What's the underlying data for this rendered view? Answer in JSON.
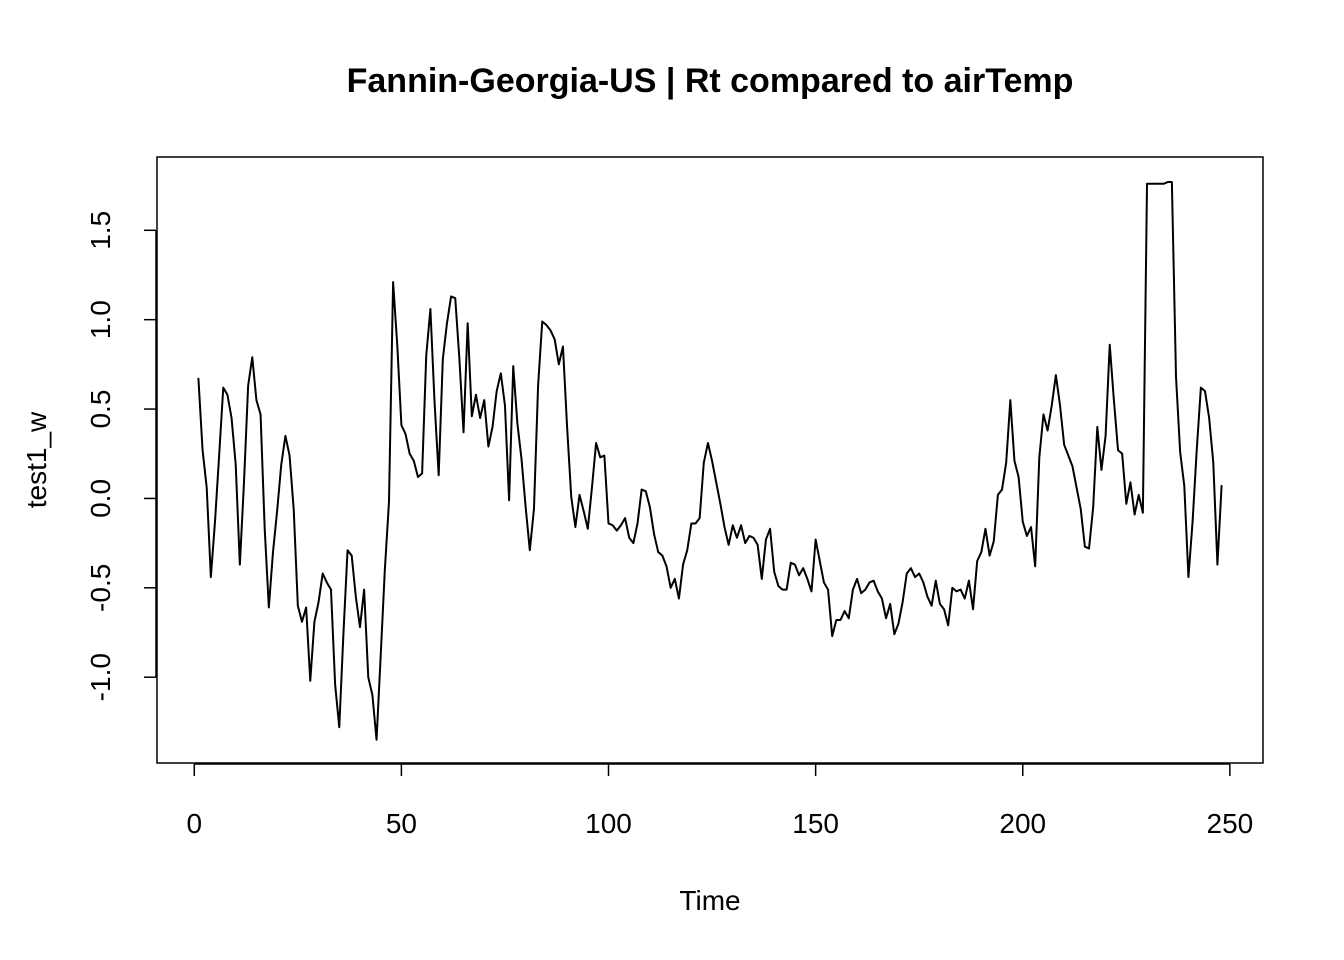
{
  "chart_data": {
    "type": "line",
    "title": "Fannin-Georgia-US | Rt compared to airTemp",
    "xlabel": "Time",
    "ylabel": "test1_w",
    "xlim": [
      -9,
      258
    ],
    "ylim": [
      -1.48,
      1.91
    ],
    "x_ticks": [
      0,
      50,
      100,
      150,
      200,
      250
    ],
    "x_tick_labels": [
      "0",
      "50",
      "100",
      "150",
      "200",
      "250"
    ],
    "y_ticks": [
      -1.0,
      -0.5,
      0.0,
      0.5,
      1.0,
      1.5
    ],
    "y_tick_labels": [
      "-1.0",
      "-0.5",
      "0.0",
      "0.5",
      "1.0",
      "1.5"
    ],
    "grid": false,
    "legend": "none",
    "line_color": "#000000",
    "series": [
      {
        "x": [
          1,
          2,
          3,
          4,
          5,
          6,
          7,
          8,
          9,
          10,
          11,
          12,
          13,
          14,
          15,
          16,
          17,
          18,
          19,
          20,
          21,
          22,
          23,
          24,
          25,
          26,
          27,
          28,
          29,
          30,
          31,
          32,
          33,
          34,
          35,
          36,
          37,
          38,
          39,
          40,
          41,
          42,
          43,
          44,
          45,
          46,
          47,
          48,
          49,
          50,
          51,
          52,
          53,
          54,
          55,
          56,
          57,
          58,
          59,
          60,
          61,
          62,
          63,
          64,
          65,
          66,
          67,
          68,
          69,
          70,
          71,
          72,
          73,
          74,
          75,
          76,
          77,
          78,
          79,
          80,
          81,
          82,
          83,
          84,
          85,
          86,
          87,
          88,
          89,
          90,
          91,
          92,
          93,
          94,
          95,
          96,
          97,
          98,
          99,
          100,
          101,
          102,
          103,
          104,
          105,
          106,
          107,
          108,
          109,
          110,
          111,
          112,
          113,
          114,
          115,
          116,
          117,
          118,
          119,
          120,
          121,
          122,
          123,
          124,
          125,
          126,
          127,
          128,
          129,
          130,
          131,
          132,
          133,
          134,
          135,
          136,
          137,
          138,
          139,
          140,
          141,
          142,
          143,
          144,
          145,
          146,
          147,
          148,
          149,
          150,
          151,
          152,
          153,
          154,
          155,
          156,
          157,
          158,
          159,
          160,
          161,
          162,
          163,
          164,
          165,
          166,
          167,
          168,
          169,
          170,
          171,
          172,
          173,
          174,
          175,
          176,
          177,
          178,
          179,
          180,
          181,
          182,
          183,
          184,
          185,
          186,
          187,
          188,
          189,
          190,
          191,
          192,
          193,
          194,
          195,
          196,
          197,
          198,
          199,
          200,
          201,
          202,
          203,
          204,
          205,
          206,
          207,
          208,
          209,
          210,
          211,
          212,
          213,
          214,
          215,
          216,
          217,
          218,
          219,
          220,
          221,
          222,
          223,
          224,
          225,
          226,
          227,
          228,
          229,
          230,
          231,
          232,
          233,
          234,
          235,
          236,
          237,
          238,
          239,
          240,
          241,
          242,
          243,
          244,
          245,
          246,
          247,
          248
        ],
        "values": [
          0.67,
          0.27,
          0.06,
          -0.44,
          -0.13,
          0.24,
          0.62,
          0.58,
          0.45,
          0.19,
          -0.37,
          0.09,
          0.63,
          0.79,
          0.55,
          0.47,
          -0.17,
          -0.61,
          -0.3,
          -0.07,
          0.19,
          0.35,
          0.24,
          -0.06,
          -0.6,
          -0.69,
          -0.61,
          -1.02,
          -0.69,
          -0.58,
          -0.42,
          -0.47,
          -0.51,
          -1.04,
          -1.28,
          -0.76,
          -0.29,
          -0.32,
          -0.55,
          -0.72,
          -0.51,
          -1.0,
          -1.1,
          -1.35,
          -0.88,
          -0.4,
          -0.02,
          1.21,
          0.86,
          0.41,
          0.36,
          0.25,
          0.21,
          0.12,
          0.14,
          0.8,
          1.06,
          0.54,
          0.13,
          0.78,
          0.98,
          1.13,
          1.12,
          0.78,
          0.37,
          0.98,
          0.46,
          0.58,
          0.45,
          0.55,
          0.29,
          0.4,
          0.6,
          0.7,
          0.52,
          -0.01,
          0.74,
          0.42,
          0.22,
          -0.05,
          -0.29,
          -0.06,
          0.63,
          0.99,
          0.97,
          0.94,
          0.89,
          0.75,
          0.85,
          0.4,
          0.01,
          -0.16,
          0.02,
          -0.07,
          -0.17,
          0.06,
          0.31,
          0.23,
          0.24,
          -0.14,
          -0.15,
          -0.18,
          -0.15,
          -0.11,
          -0.22,
          -0.25,
          -0.14,
          0.05,
          0.04,
          -0.05,
          -0.2,
          -0.3,
          -0.32,
          -0.38,
          -0.5,
          -0.45,
          -0.56,
          -0.37,
          -0.29,
          -0.14,
          -0.14,
          -0.11,
          0.2,
          0.31,
          0.21,
          0.09,
          -0.03,
          -0.16,
          -0.26,
          -0.15,
          -0.22,
          -0.15,
          -0.25,
          -0.21,
          -0.22,
          -0.26,
          -0.45,
          -0.23,
          -0.17,
          -0.41,
          -0.49,
          -0.51,
          -0.51,
          -0.36,
          -0.37,
          -0.43,
          -0.39,
          -0.45,
          -0.52,
          -0.23,
          -0.35,
          -0.47,
          -0.51,
          -0.77,
          -0.68,
          -0.68,
          -0.63,
          -0.67,
          -0.51,
          -0.45,
          -0.53,
          -0.51,
          -0.47,
          -0.46,
          -0.52,
          -0.56,
          -0.67,
          -0.59,
          -0.76,
          -0.7,
          -0.58,
          -0.42,
          -0.39,
          -0.44,
          -0.42,
          -0.47,
          -0.55,
          -0.6,
          -0.46,
          -0.59,
          -0.62,
          -0.71,
          -0.5,
          -0.52,
          -0.51,
          -0.56,
          -0.46,
          -0.62,
          -0.35,
          -0.3,
          -0.17,
          -0.32,
          -0.24,
          0.02,
          0.05,
          0.2,
          0.55,
          0.21,
          0.12,
          -0.13,
          -0.21,
          -0.16,
          -0.38,
          0.23,
          0.47,
          0.38,
          0.52,
          0.69,
          0.52,
          0.3,
          0.24,
          0.18,
          0.06,
          -0.06,
          -0.27,
          -0.28,
          -0.05,
          0.4,
          0.16,
          0.35,
          0.86,
          0.55,
          0.27,
          0.25,
          -0.03,
          0.09,
          -0.09,
          0.02,
          -0.08,
          1.76,
          1.76,
          1.76,
          1.76,
          1.76,
          1.77,
          1.77,
          0.68,
          0.26,
          0.07,
          -0.44,
          -0.13,
          0.27,
          0.62,
          0.6,
          0.45,
          0.2,
          -0.37,
          0.07
        ]
      }
    ]
  }
}
